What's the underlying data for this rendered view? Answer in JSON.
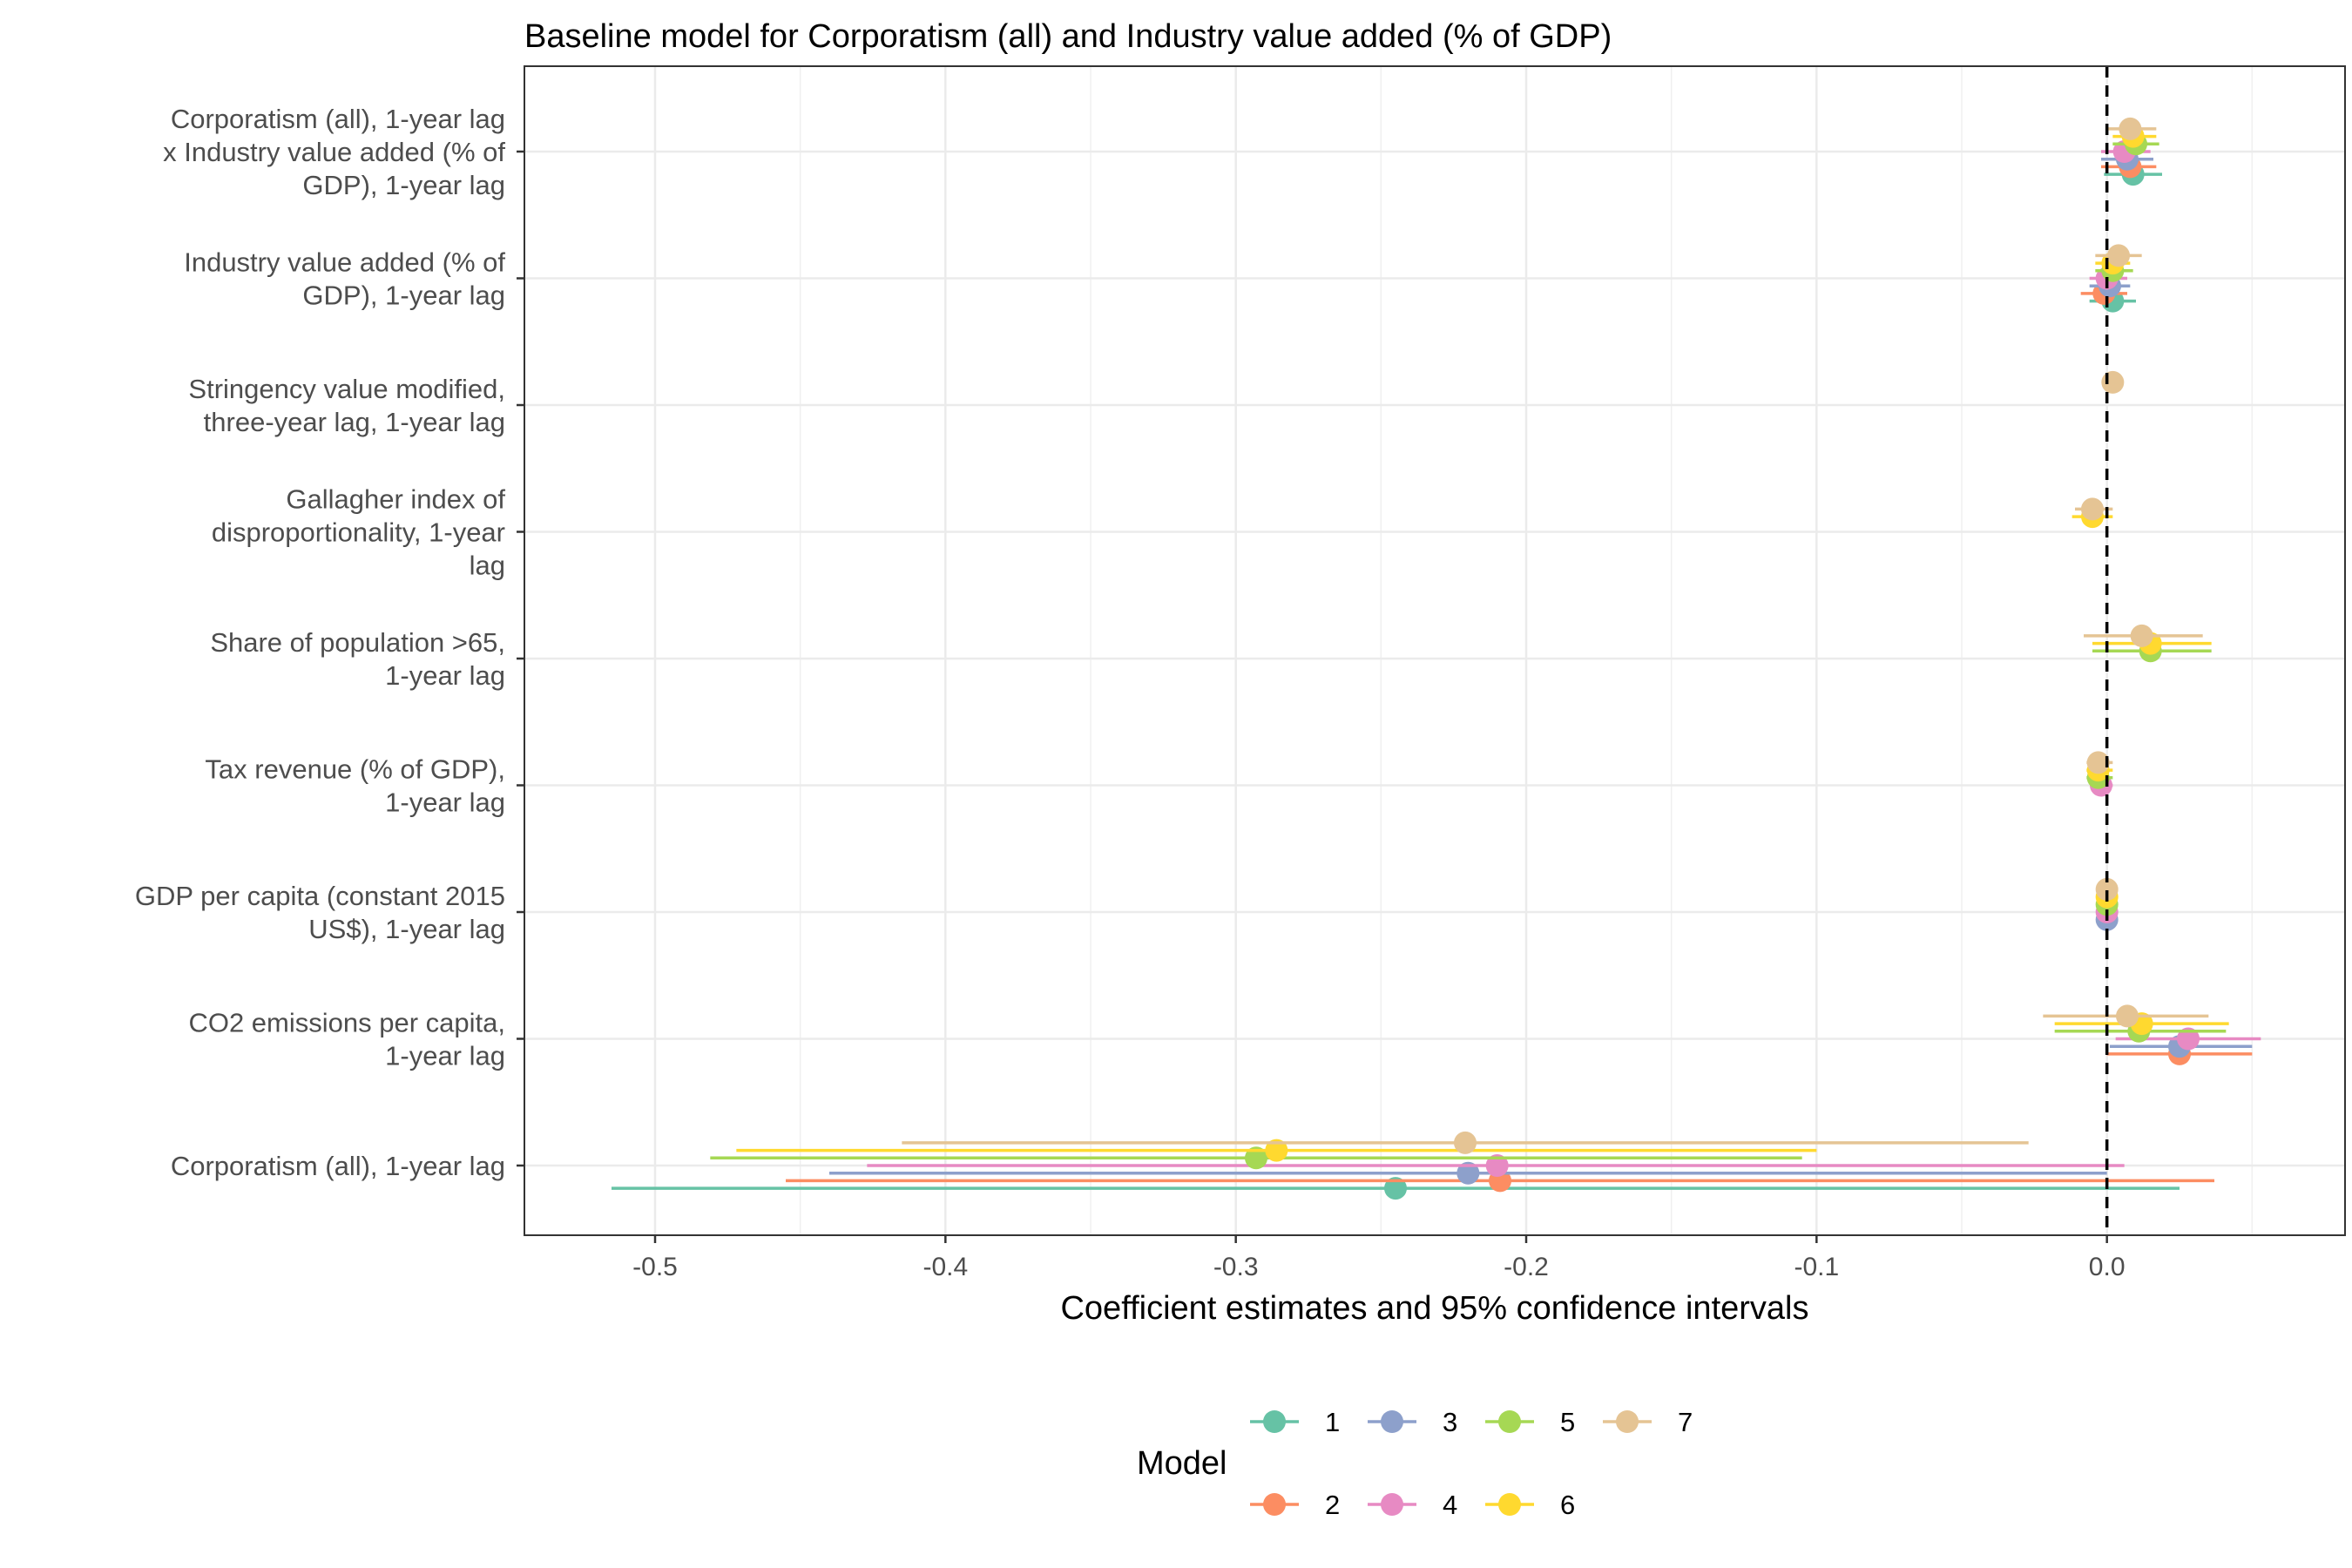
{
  "chart_data": {
    "type": "coefficient-plot",
    "title": "Baseline model for Corporatism (all) and Industry value added (% of GDP)",
    "xlabel": "Coefficient estimates and 95% confidence intervals",
    "xlim": [
      -0.545,
      0.082
    ],
    "xticks": [
      -0.5,
      -0.4,
      -0.3,
      -0.2,
      -0.1,
      0.0
    ],
    "xtick_labels": [
      "-0.5",
      "-0.4",
      "-0.3",
      "-0.2",
      "-0.1",
      "0.0"
    ],
    "reference_line": 0,
    "grid": true,
    "legend": {
      "title": "Model",
      "position": "bottom",
      "entries": [
        "1",
        "2",
        "3",
        "4",
        "5",
        "6",
        "7"
      ]
    },
    "series_colors": {
      "1": "#66C2A5",
      "2": "#FC8D62",
      "3": "#8DA0CB",
      "4": "#E78AC3",
      "5": "#A6D854",
      "6": "#FFD92F",
      "7": "#E5C494"
    },
    "terms": [
      {
        "label": [
          "Corporatism (all), 1-year lag",
          "x Industry value added (% of",
          "GDP), 1-year lag"
        ],
        "estimates": [
          {
            "model": "1",
            "est": 0.009,
            "lo": -0.001,
            "hi": 0.019
          },
          {
            "model": "2",
            "est": 0.008,
            "lo": -0.002,
            "hi": 0.017
          },
          {
            "model": "3",
            "est": 0.007,
            "lo": -0.002,
            "hi": 0.016
          },
          {
            "model": "4",
            "est": 0.006,
            "lo": -0.002,
            "hi": 0.015
          },
          {
            "model": "5",
            "est": 0.01,
            "lo": 0.002,
            "hi": 0.018
          },
          {
            "model": "6",
            "est": 0.009,
            "lo": 0.002,
            "hi": 0.017
          },
          {
            "model": "7",
            "est": 0.008,
            "lo": 0.0,
            "hi": 0.017
          }
        ]
      },
      {
        "label": [
          "Industry value added (% of",
          "GDP), 1-year lag"
        ],
        "estimates": [
          {
            "model": "1",
            "est": 0.002,
            "lo": -0.006,
            "hi": 0.01
          },
          {
            "model": "2",
            "est": -0.001,
            "lo": -0.009,
            "hi": 0.007
          },
          {
            "model": "3",
            "est": 0.001,
            "lo": -0.006,
            "hi": 0.008
          },
          {
            "model": "4",
            "est": 0.0,
            "lo": -0.006,
            "hi": 0.007
          },
          {
            "model": "5",
            "est": 0.002,
            "lo": -0.004,
            "hi": 0.009
          },
          {
            "model": "6",
            "est": 0.002,
            "lo": -0.004,
            "hi": 0.008
          },
          {
            "model": "7",
            "est": 0.004,
            "lo": -0.004,
            "hi": 0.012
          }
        ]
      },
      {
        "label": [
          "Stringency value modified,",
          "three-year lag, 1-year lag"
        ],
        "estimates": [
          {
            "model": "7",
            "est": 0.002,
            "lo": 0.0,
            "hi": 0.004
          }
        ]
      },
      {
        "label": [
          "Gallagher index of",
          "disproportionality, 1-year",
          "lag"
        ],
        "estimates": [
          {
            "model": "6",
            "est": -0.005,
            "lo": -0.012,
            "hi": 0.002
          },
          {
            "model": "7",
            "est": -0.005,
            "lo": -0.011,
            "hi": 0.002
          }
        ]
      },
      {
        "label": [
          "Share of population >65,",
          "1-year lag"
        ],
        "estimates": [
          {
            "model": "5",
            "est": 0.015,
            "lo": -0.005,
            "hi": 0.036
          },
          {
            "model": "6",
            "est": 0.015,
            "lo": -0.005,
            "hi": 0.036
          },
          {
            "model": "7",
            "est": 0.012,
            "lo": -0.008,
            "hi": 0.033
          }
        ]
      },
      {
        "label": [
          "Tax revenue (% of GDP),",
          "1-year lag"
        ],
        "estimates": [
          {
            "model": "4",
            "est": -0.002,
            "lo": -0.005,
            "hi": 0.002
          },
          {
            "model": "5",
            "est": -0.003,
            "lo": -0.007,
            "hi": 0.002
          },
          {
            "model": "6",
            "est": -0.003,
            "lo": -0.007,
            "hi": 0.002
          },
          {
            "model": "7",
            "est": -0.003,
            "lo": -0.007,
            "hi": 0.002
          }
        ]
      },
      {
        "label": [
          "GDP per capita (constant 2015",
          "US$), 1-year lag"
        ],
        "estimates": [
          {
            "model": "3",
            "est": 0.0,
            "lo": 0.0,
            "hi": 0.0
          },
          {
            "model": "4",
            "est": 0.0,
            "lo": 0.0,
            "hi": 0.0
          },
          {
            "model": "5",
            "est": 0.0,
            "lo": 0.0,
            "hi": 0.0
          },
          {
            "model": "6",
            "est": 0.0,
            "lo": 0.0,
            "hi": 0.0
          },
          {
            "model": "7",
            "est": 0.0,
            "lo": 0.0,
            "hi": 0.0
          }
        ]
      },
      {
        "label": [
          "CO2 emissions per capita,",
          "1-year lag"
        ],
        "estimates": [
          {
            "model": "2",
            "est": 0.025,
            "lo": 0.0,
            "hi": 0.05
          },
          {
            "model": "3",
            "est": 0.025,
            "lo": 0.001,
            "hi": 0.05
          },
          {
            "model": "4",
            "est": 0.028,
            "lo": 0.003,
            "hi": 0.053
          },
          {
            "model": "5",
            "est": 0.011,
            "lo": -0.018,
            "hi": 0.041
          },
          {
            "model": "6",
            "est": 0.012,
            "lo": -0.018,
            "hi": 0.042
          },
          {
            "model": "7",
            "est": 0.007,
            "lo": -0.022,
            "hi": 0.035
          }
        ]
      },
      {
        "label": [
          "Corporatism (all), 1-year lag"
        ],
        "estimates": [
          {
            "model": "1",
            "est": -0.245,
            "lo": -0.515,
            "hi": 0.025
          },
          {
            "model": "2",
            "est": -0.209,
            "lo": -0.455,
            "hi": 0.037
          },
          {
            "model": "3",
            "est": -0.22,
            "lo": -0.44,
            "hi": 0.0
          },
          {
            "model": "4",
            "est": -0.21,
            "lo": -0.427,
            "hi": 0.006
          },
          {
            "model": "5",
            "est": -0.293,
            "lo": -0.481,
            "hi": -0.105
          },
          {
            "model": "6",
            "est": -0.286,
            "lo": -0.472,
            "hi": -0.1
          },
          {
            "model": "7",
            "est": -0.221,
            "lo": -0.415,
            "hi": -0.027
          }
        ]
      }
    ]
  }
}
